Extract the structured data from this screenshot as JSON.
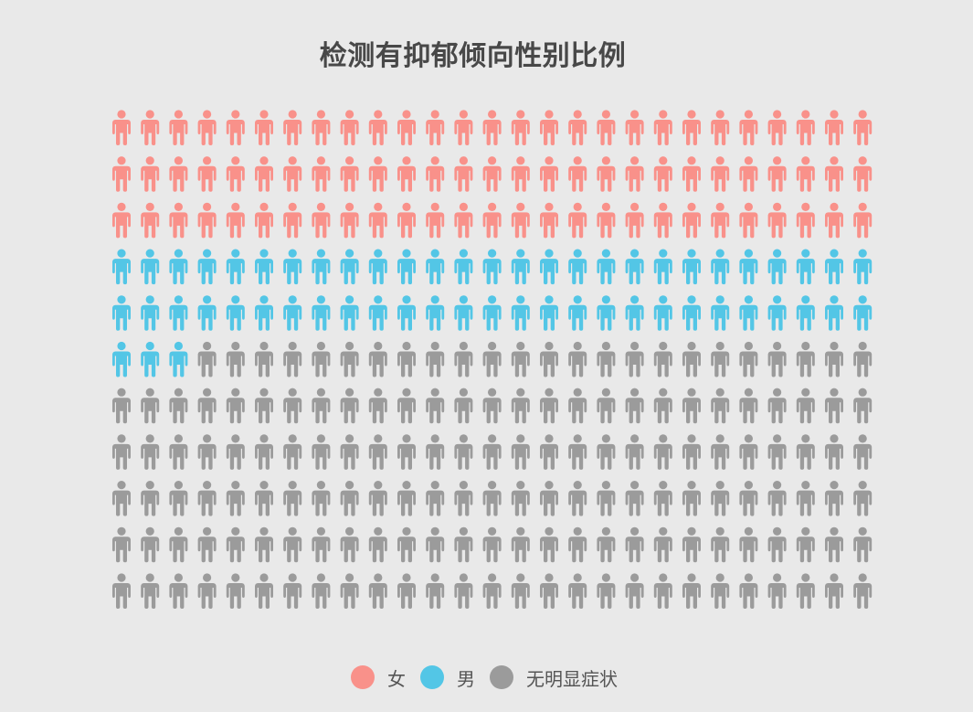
{
  "chart_data": {
    "type": "pictogram",
    "title": "检测有抑郁倾向性别比例",
    "unit_total": 297,
    "grid": {
      "rows": 11,
      "columns": 27
    },
    "series": [
      {
        "name": "女",
        "value": 81,
        "color": "#f9918a"
      },
      {
        "name": "男",
        "value": 57,
        "color": "#53c6e6"
      },
      {
        "name": "无明显症状",
        "value": 159,
        "color": "#9b9b9b"
      }
    ],
    "legend_position": "bottom-center"
  }
}
